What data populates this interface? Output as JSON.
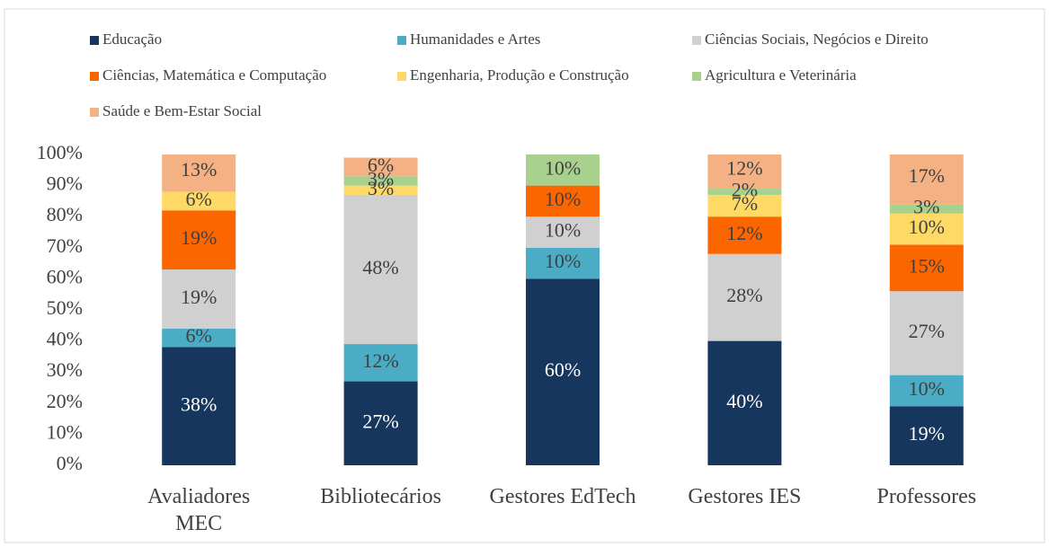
{
  "chart_data": {
    "type": "stacked_bar",
    "categories": [
      "Avaliadores MEC",
      "Bibliotecários",
      "Gestores EdTech",
      "Gestores IES",
      "Professores"
    ],
    "series": [
      {
        "name": "Educação",
        "color": "#17365d",
        "values": [
          38,
          27,
          60,
          40,
          19
        ],
        "value_labels": [
          "38%",
          "27%",
          "60%",
          "40%",
          "19%"
        ]
      },
      {
        "name": "Humanidades e Artes",
        "color": "#4bacc6",
        "values": [
          6,
          12,
          10,
          0,
          10
        ],
        "value_labels": [
          "6%",
          "12%",
          "10%",
          null,
          "10%"
        ]
      },
      {
        "name": "Ciências Sociais, Negócios e Direito",
        "color": "#d0d0d0",
        "values": [
          19,
          48,
          10,
          28,
          27
        ],
        "value_labels": [
          "19%",
          "48%",
          "10%",
          "28%",
          "27%"
        ]
      },
      {
        "name": "Ciências, Matemática e Computação",
        "color": "#fb6600",
        "values": [
          19,
          0,
          10,
          12,
          15
        ],
        "value_labels": [
          "19%",
          null,
          "10%",
          "12%",
          "15%"
        ]
      },
      {
        "name": "Engenharia, Produção e Construção",
        "color": "#ffd966",
        "values": [
          6,
          3,
          0,
          7,
          10
        ],
        "value_labels": [
          "6%",
          "3%",
          null,
          "7%",
          "10%"
        ]
      },
      {
        "name": "Agricultura e Veterinária",
        "color": "#a9d18e",
        "values": [
          0,
          3,
          10,
          2,
          3
        ],
        "value_labels": [
          null,
          "3%",
          "10%",
          "2%",
          "3%"
        ]
      },
      {
        "name": "Saúde e Bem-Estar Social",
        "color": "#f4b183",
        "values": [
          13,
          6,
          0,
          12,
          17
        ],
        "value_labels": [
          "13%",
          "6%",
          null,
          "12%",
          "17%"
        ]
      }
    ],
    "ylim": [
      0,
      100
    ],
    "yticks": [
      {
        "value": 0,
        "label": "0%"
      },
      {
        "value": 10,
        "label": "10%"
      },
      {
        "value": 20,
        "label": "20%"
      },
      {
        "value": 30,
        "label": "30%"
      },
      {
        "value": 40,
        "label": "40%"
      },
      {
        "value": 50,
        "label": "50%"
      },
      {
        "value": 60,
        "label": "60%"
      },
      {
        "value": 70,
        "label": "70%"
      },
      {
        "value": 80,
        "label": "80%"
      },
      {
        "value": 90,
        "label": "90%"
      },
      {
        "value": 100,
        "label": "100%"
      }
    ],
    "legend": "top"
  }
}
